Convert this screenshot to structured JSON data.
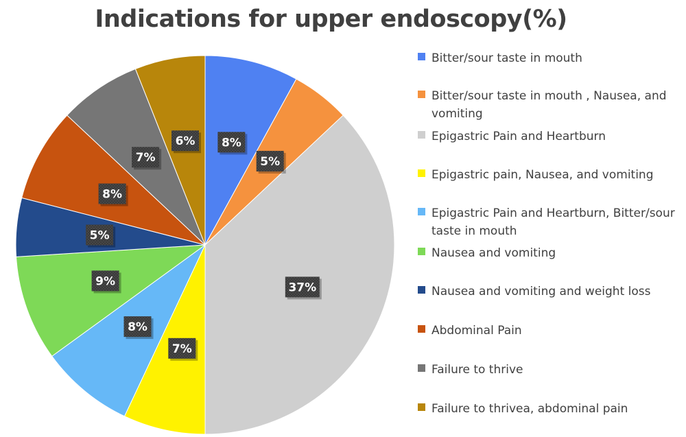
{
  "chart_data": {
    "type": "pie",
    "title": "Indications for upper endoscopy(%)",
    "categories": [
      "Bitter/sour taste in mouth",
      "Bitter/sour taste in mouth , Nausea, and vomiting",
      "Epigastric Pain and Heartburn",
      "Epigastric pain, Nausea, and vomiting",
      "Epigastric Pain and Heartburn, Bitter/sour taste in mouth",
      "Nausea and vomiting",
      "Nausea and vomiting and weight loss",
      "Abdominal Pain",
      "Failure to thrive",
      "Failure to thrivea, abdominal pain"
    ],
    "values": [
      8,
      5,
      37,
      7,
      8,
      9,
      5,
      8,
      7,
      6
    ],
    "data_labels": [
      "8%",
      "5%",
      "37%",
      "7%",
      "8%",
      "9%",
      "5%",
      "8%",
      "7%",
      "6%"
    ],
    "colors": [
      "#4f81f2",
      "#f5923e",
      "#cfcfcf",
      "#fff200",
      "#66b8f7",
      "#7ed957",
      "#234b8c",
      "#c7530f",
      "#767676",
      "#b8860b"
    ],
    "legend_position": "right",
    "start_angle": "12 o'clock",
    "direction": "clockwise"
  }
}
